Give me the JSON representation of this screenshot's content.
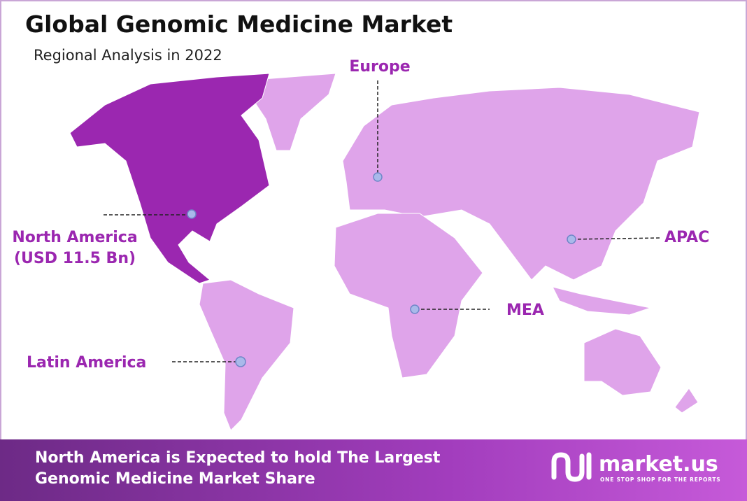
{
  "header": {
    "title": "Global Genomic Medicine Market",
    "subtitle": "Regional Analysis in 2022"
  },
  "regions": [
    {
      "label": "Europe"
    },
    {
      "label": "North America",
      "value_label": "(USD 11.5 Bn)"
    },
    {
      "label": "APAC"
    },
    {
      "label": "MEA"
    },
    {
      "label": "Latin America"
    }
  ],
  "footer": {
    "lines": [
      "North America is Expected to hold The Largest",
      "Genomic Medicine Market Share"
    ]
  },
  "brand": {
    "name": "market.us",
    "tagline": "ONE STOP SHOP FOR THE REPORTS"
  }
}
